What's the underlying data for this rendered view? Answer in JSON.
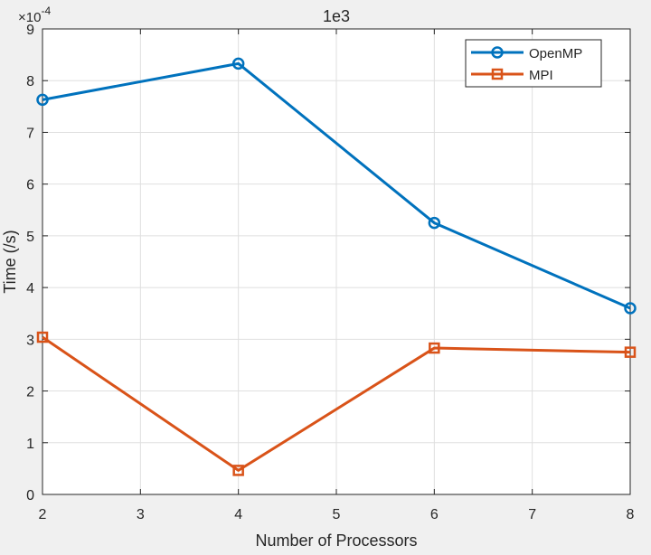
{
  "chart_data": {
    "type": "line",
    "title": "1e3",
    "xlabel": "Number of Processors",
    "ylabel": "Time (/s)",
    "y_multiplier": "×10",
    "y_exponent": "-4",
    "xlim": [
      2,
      8
    ],
    "ylim": [
      0,
      9
    ],
    "xticks": [
      "2",
      "3",
      "4",
      "5",
      "6",
      "7",
      "8"
    ],
    "yticks": [
      "0",
      "1",
      "2",
      "3",
      "4",
      "5",
      "6",
      "7",
      "8",
      "9"
    ],
    "grid": true,
    "legend_position": "top-right",
    "x": [
      2,
      4,
      6,
      8
    ],
    "series": [
      {
        "name": "OpenMP",
        "color": "#0072BD",
        "marker": "circle",
        "values": [
          0.000763,
          0.000833,
          0.000525,
          0.00036
        ]
      },
      {
        "name": "MPI",
        "color": "#D95319",
        "marker": "square",
        "values": [
          0.000304,
          4.65e-05,
          0.000283,
          0.000275
        ]
      }
    ]
  }
}
